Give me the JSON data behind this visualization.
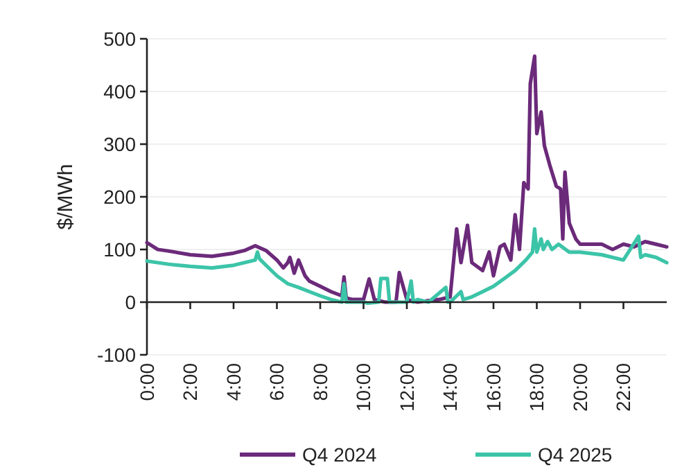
{
  "chart_data": {
    "type": "line",
    "ylabel": "$/MWh",
    "xlim": [
      0,
      24
    ],
    "ylim": [
      -100,
      500
    ],
    "yticks": [
      -100,
      0,
      100,
      200,
      300,
      400,
      500
    ],
    "xticks": [
      {
        "value": 0,
        "label": "0:00"
      },
      {
        "value": 2,
        "label": "2:00"
      },
      {
        "value": 4,
        "label": "4:00"
      },
      {
        "value": 6,
        "label": "6:00"
      },
      {
        "value": 8,
        "label": "8:00"
      },
      {
        "value": 10,
        "label": "10:00"
      },
      {
        "value": 12,
        "label": "12:00"
      },
      {
        "value": 14,
        "label": "14:00"
      },
      {
        "value": 16,
        "label": "16:00"
      },
      {
        "value": 18,
        "label": "18:00"
      },
      {
        "value": 20,
        "label": "20:00"
      },
      {
        "value": 22,
        "label": "22:00"
      }
    ],
    "grid": "y",
    "legend": "bottom",
    "marker": "none",
    "line_style": "solid",
    "series": [
      {
        "name": "Q4 2024",
        "color": "#6b2a7a",
        "x": [
          0,
          0.5,
          1,
          2,
          3,
          4,
          4.5,
          5,
          5.5,
          6,
          6.3,
          6.5,
          6.6,
          6.8,
          7,
          7.3,
          7.5,
          8,
          8.5,
          9,
          9.1,
          9.2,
          9.5,
          10,
          10.26,
          10.5,
          11,
          11.5,
          11.65,
          12,
          12.5,
          13,
          13.5,
          14,
          14.3,
          14.5,
          14.8,
          15,
          15.5,
          15.8,
          16,
          16.3,
          16.5,
          16.8,
          17,
          17.2,
          17.4,
          17.6,
          17.7,
          17.9,
          18,
          18.2,
          18.35,
          18.6,
          18.9,
          19.1,
          19.2,
          19.3,
          19.5,
          19.8,
          20,
          21,
          21.5,
          22,
          22.5,
          23,
          23.5,
          24
        ],
        "values": [
          113,
          100,
          97,
          90,
          87,
          93,
          98,
          107,
          98,
          80,
          65,
          75,
          85,
          55,
          80,
          50,
          40,
          30,
          20,
          12,
          48,
          8,
          5,
          5,
          44,
          5,
          0,
          0,
          56,
          5,
          0,
          3,
          5,
          10,
          139,
          75,
          146,
          75,
          60,
          95,
          50,
          105,
          110,
          80,
          166,
          100,
          227,
          215,
          415,
          467,
          320,
          361,
          297,
          260,
          220,
          215,
          120,
          247,
          150,
          120,
          110,
          110,
          100,
          110,
          105,
          115,
          110,
          105
        ]
      },
      {
        "name": "Q4 2025",
        "color": "#3cc4a8",
        "x": [
          0,
          1,
          2,
          3,
          4,
          4.5,
          5,
          5.1,
          5.2,
          5.5,
          6,
          6.5,
          7,
          7.5,
          8,
          8.5,
          9,
          9.1,
          9.2,
          10,
          10.2,
          10.7,
          10.8,
          11.1,
          11.2,
          12,
          12.2,
          12.3,
          12.5,
          13,
          13.8,
          13.9,
          14,
          14.5,
          14.6,
          15,
          15.5,
          16,
          16.5,
          17,
          17.5,
          17.8,
          17.9,
          18,
          18.2,
          18.3,
          18.5,
          18.7,
          19,
          19.5,
          20,
          21,
          22,
          22.7,
          22.8,
          23,
          23.5,
          24
        ],
        "values": [
          78,
          72,
          68,
          65,
          70,
          75,
          80,
          95,
          82,
          70,
          50,
          35,
          28,
          20,
          12,
          5,
          0,
          35,
          0,
          0,
          -2,
          0,
          45,
          45,
          0,
          0,
          40,
          0,
          5,
          0,
          28,
          0,
          0,
          20,
          5,
          10,
          20,
          30,
          45,
          60,
          80,
          95,
          139,
          95,
          120,
          100,
          115,
          100,
          110,
          95,
          95,
          90,
          80,
          125,
          85,
          90,
          85,
          75
        ]
      }
    ]
  }
}
